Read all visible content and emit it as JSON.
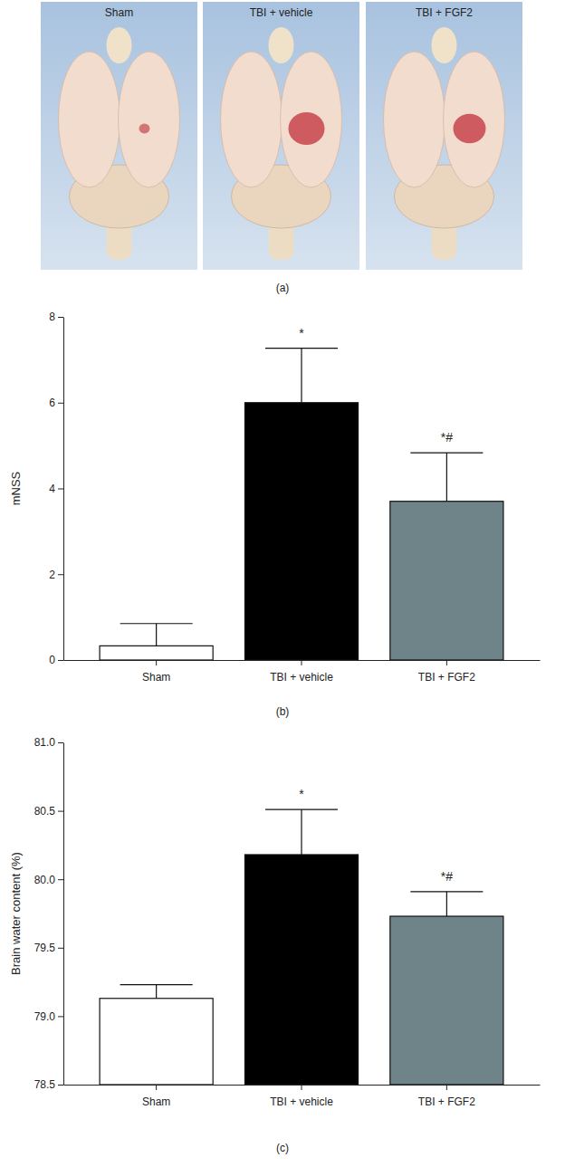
{
  "image_panel": {
    "labels": [
      "Sham",
      "TBI + vehicle",
      "TBI + FGF2"
    ],
    "caption": "(a)"
  },
  "chart_data": [
    {
      "type": "bar",
      "caption": "(b)",
      "y_label": "mNSS",
      "categories": [
        "Sham",
        "TBI + vehicle",
        "TBI + FGF2"
      ],
      "values": [
        0.33,
        6.0,
        3.7
      ],
      "errors": [
        0.52,
        1.27,
        1.13
      ],
      "annotations": [
        null,
        "*",
        "*#"
      ],
      "colors": [
        "#ffffff",
        "#000000",
        "#6e8489"
      ],
      "ylim": [
        0,
        8
      ],
      "yticks": [
        0,
        2,
        4,
        6,
        8
      ]
    },
    {
      "type": "bar",
      "caption": "(c)",
      "y_label": "Brain water content (%)",
      "categories": [
        "Sham",
        "TBI + vehicle",
        "TBI + FGF2"
      ],
      "values": [
        79.13,
        80.18,
        79.73
      ],
      "errors": [
        0.1,
        0.33,
        0.18
      ],
      "annotations": [
        null,
        "*",
        "*#"
      ],
      "colors": [
        "#ffffff",
        "#000000",
        "#6e8489"
      ],
      "ylim": [
        78.5,
        81.0
      ],
      "yticks": [
        78.5,
        {
          "value": 79,
          "label": "79.0"
        },
        79.5,
        {
          "value": 80,
          "label": "80.0"
        },
        80.5,
        {
          "value": 81,
          "label": "81.0"
        }
      ]
    }
  ]
}
